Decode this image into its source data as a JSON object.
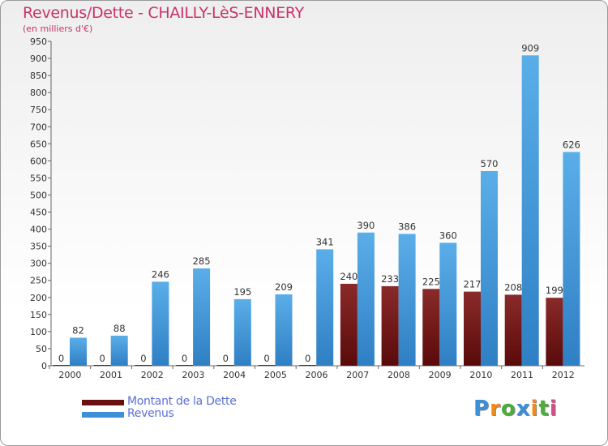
{
  "colors": {
    "debt": "#7a1f1f",
    "revenue": "#4a9de0",
    "title": "#c9336b",
    "legend_text": "#5b6fd6"
  },
  "logo": {
    "text": "Proxiti",
    "letter_colors": [
      "#3b8fd6",
      "#f08a1a",
      "#4cae3a",
      "#3b8fd6",
      "#f08a1a",
      "#4cae3a",
      "#d84b8a"
    ]
  },
  "chart_data": {
    "type": "bar",
    "title": "Revenus/Dette - CHAILLY-LèS-ENNERY",
    "subtitle": "(en milliers d'€)",
    "xlabel": "",
    "ylabel": "",
    "ylim": [
      0,
      950
    ],
    "ytick_step": 50,
    "grid": false,
    "legend_position": "bottom-left",
    "categories": [
      "2000",
      "2001",
      "2002",
      "2003",
      "2004",
      "2005",
      "2006",
      "2007",
      "2008",
      "2009",
      "2010",
      "2011",
      "2012"
    ],
    "series": [
      {
        "name": "Montant de la Dette",
        "color_key": "debt",
        "values": [
          0,
          0,
          0,
          0,
          0,
          0,
          0,
          240,
          233,
          225,
          217,
          208,
          199
        ]
      },
      {
        "name": "Revenus",
        "color_key": "revenue",
        "values": [
          82,
          88,
          246,
          285,
          195,
          209,
          341,
          390,
          386,
          360,
          570,
          909,
          626
        ]
      }
    ]
  }
}
